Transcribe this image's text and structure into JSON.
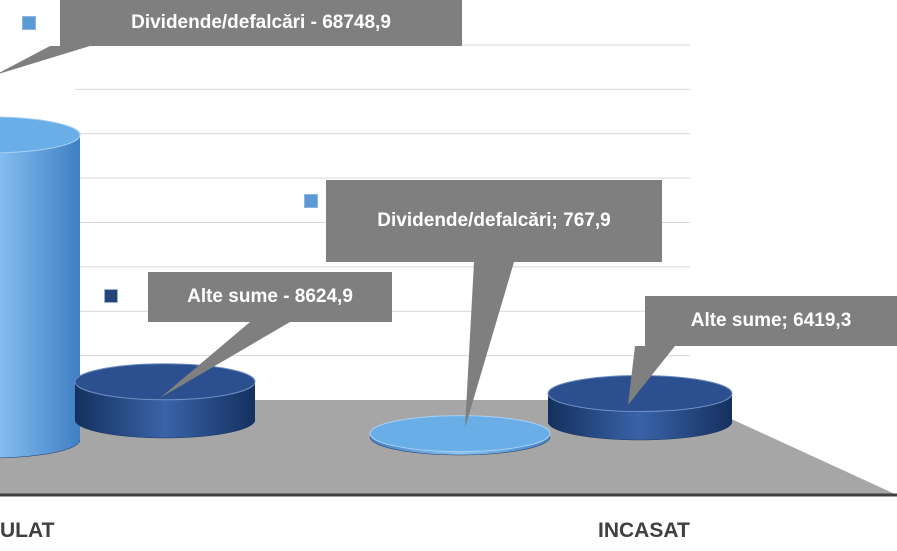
{
  "chart_data": {
    "type": "cylinder",
    "categories": [
      "ULAT",
      "INCASAT"
    ],
    "series": [
      {
        "name": "Dividende/defalcări",
        "color": "#5b9bd5",
        "values": [
          68748.9,
          767.9
        ],
        "value_labels": [
          "Dividende/defalcări - 68748,9",
          "Dividende/defalcări; 767,9"
        ]
      },
      {
        "name": "Alte sume",
        "color": "#264478",
        "values": [
          8624.9,
          6419.3
        ],
        "value_labels": [
          "Alte sume - 8624,9",
          "Alte sume; 6419,3"
        ]
      }
    ],
    "ylim": [
      0,
      80000
    ],
    "yticks": [
      0,
      10000,
      20000,
      30000,
      40000,
      50000,
      60000,
      70000,
      80000
    ],
    "grid": true
  }
}
